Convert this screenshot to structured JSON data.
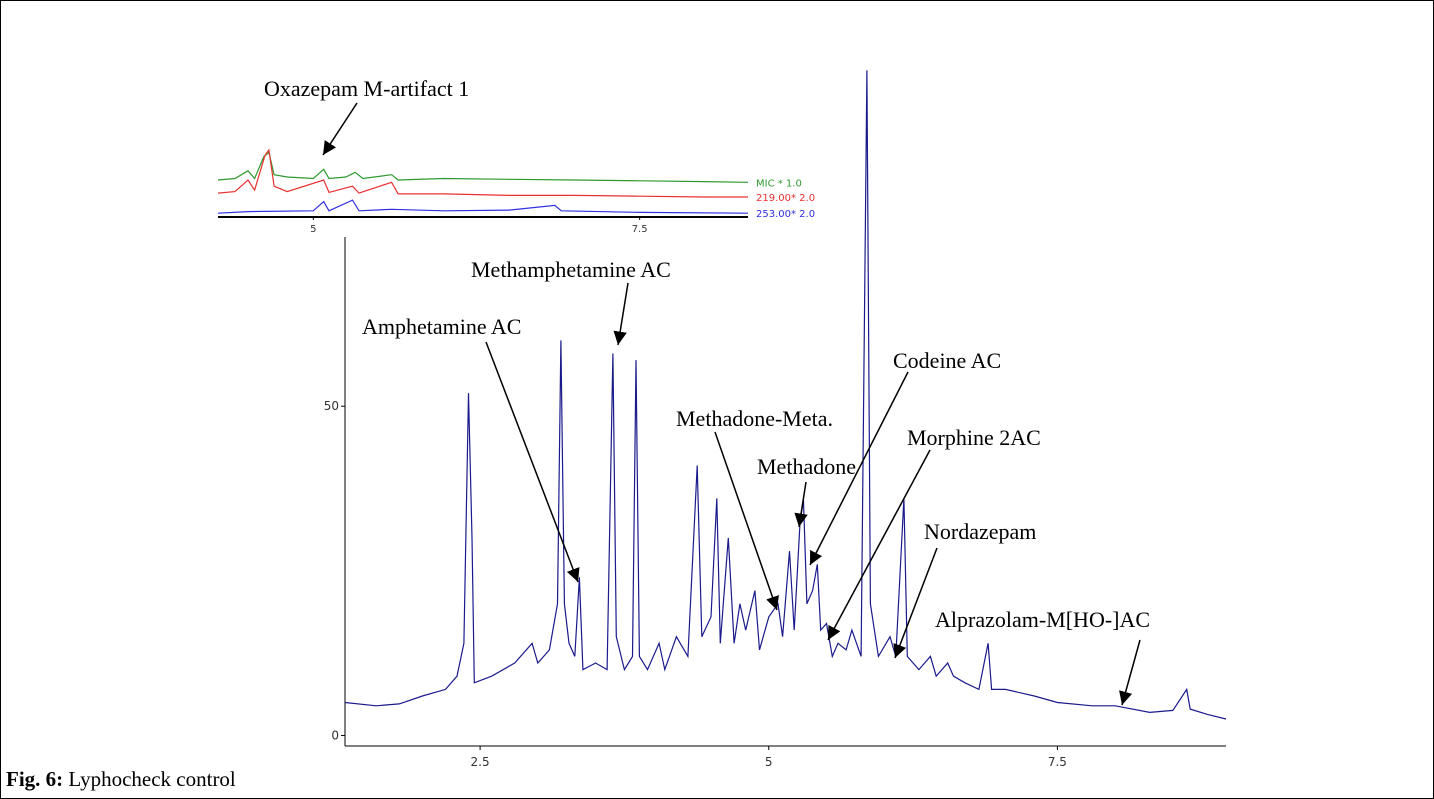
{
  "chart_data": [
    {
      "type": "line",
      "color": "#1a1a8c",
      "x": [
        1.33,
        1.6,
        1.8,
        2.0,
        2.2,
        2.3,
        2.36,
        2.4,
        2.43,
        2.45,
        2.6,
        2.8,
        2.95,
        3.0,
        3.1,
        3.17,
        3.2,
        3.23,
        3.27,
        3.32,
        3.36,
        3.39,
        3.5,
        3.6,
        3.65,
        3.68,
        3.75,
        3.82,
        3.85,
        3.88,
        3.95,
        4.05,
        4.1,
        4.2,
        4.3,
        4.38,
        4.42,
        4.5,
        4.55,
        4.58,
        4.65,
        4.7,
        4.75,
        4.8,
        4.88,
        4.92,
        5.0,
        5.08,
        5.12,
        5.18,
        5.22,
        5.27,
        5.3,
        5.33,
        5.38,
        5.42,
        5.45,
        5.5,
        5.55,
        5.6,
        5.67,
        5.72,
        5.8,
        5.85,
        5.88,
        5.95,
        6.05,
        6.1,
        6.17,
        6.2,
        6.3,
        6.4,
        6.45,
        6.55,
        6.6,
        6.7,
        6.82,
        6.9,
        6.93,
        7.05,
        7.3,
        7.5,
        7.8,
        8.0,
        8.3,
        8.5,
        8.62,
        8.65,
        8.8,
        8.96
      ],
      "values": [
        5,
        4.5,
        4.8,
        6,
        7,
        9,
        14,
        52,
        30,
        8,
        9,
        11,
        14,
        11,
        13,
        20,
        60,
        20,
        14,
        12,
        24,
        10,
        11,
        10,
        58,
        15,
        10,
        12,
        57,
        12,
        10,
        14,
        10,
        15,
        12,
        41,
        15,
        18,
        36,
        14,
        30,
        14,
        20,
        16,
        22,
        13,
        18,
        20,
        15,
        28,
        16,
        32,
        36,
        20,
        22,
        26,
        16,
        17,
        12,
        14,
        13,
        16,
        12,
        101,
        20,
        12,
        15,
        12,
        36,
        12,
        10,
        12,
        9,
        11,
        9,
        8,
        7,
        14,
        7,
        7,
        6,
        5,
        4.5,
        4.5,
        3.5,
        3.8,
        7,
        4,
        3.2,
        2.5
      ],
      "xlim": [
        1.33,
        8.96
      ],
      "ylim": [
        -1.6,
        75.7
      ],
      "xticks": [
        2.5,
        5,
        7.5
      ],
      "yticks": [
        0,
        50
      ],
      "annotations": [
        "Oxazepam M-artifact 1",
        "Methamphetamine AC",
        "Amphetamine AC",
        "Codeine AC",
        "Methadone-Meta.",
        "Morphine 2AC",
        "Methadone",
        "Nordazepam",
        "Alprazolam-M[HO-]AC"
      ]
    },
    {
      "type": "line",
      "xlim": [
        4.27,
        8.33
      ],
      "ylim": [
        0,
        100
      ],
      "xticks": [
        5,
        7.5
      ],
      "series": [
        {
          "name": "MIC * 1.0",
          "color": "#2e9a2e",
          "x": [
            4.27,
            4.4,
            4.5,
            4.55,
            4.62,
            4.66,
            4.7,
            4.8,
            5.0,
            5.08,
            5.12,
            5.25,
            5.32,
            5.38,
            5.6,
            5.65,
            6.0,
            6.5,
            7.0,
            7.5,
            8.0,
            8.33
          ],
          "values": [
            48,
            50,
            60,
            50,
            78,
            84,
            55,
            52,
            50,
            62,
            50,
            52,
            58,
            50,
            55,
            48,
            50,
            49,
            48,
            47,
            46,
            45
          ]
        },
        {
          "name": "219.00* 2.0",
          "color": "#e83030",
          "x": [
            4.27,
            4.4,
            4.5,
            4.55,
            4.63,
            4.66,
            4.7,
            4.8,
            5.08,
            5.12,
            5.3,
            5.35,
            5.6,
            5.65,
            6.0,
            6.5,
            7.0,
            7.5,
            8.0,
            8.33
          ],
          "values": [
            31,
            33,
            48,
            35,
            80,
            87,
            40,
            33,
            48,
            32,
            40,
            31,
            45,
            30,
            30,
            28,
            28,
            27,
            26,
            26
          ]
        },
        {
          "name": "253.00* 2.0",
          "color": "#3030e0",
          "x": [
            4.27,
            4.5,
            5.0,
            5.08,
            5.12,
            5.3,
            5.35,
            5.6,
            6.0,
            6.5,
            6.85,
            6.9,
            7.5,
            8.33
          ],
          "values": [
            5,
            7,
            8,
            20,
            8,
            22,
            8,
            10,
            8,
            9,
            15,
            8,
            6,
            5
          ]
        }
      ]
    }
  ],
  "caption": {
    "label": "Fig. 6:",
    "text": "Lyphocheck control"
  }
}
